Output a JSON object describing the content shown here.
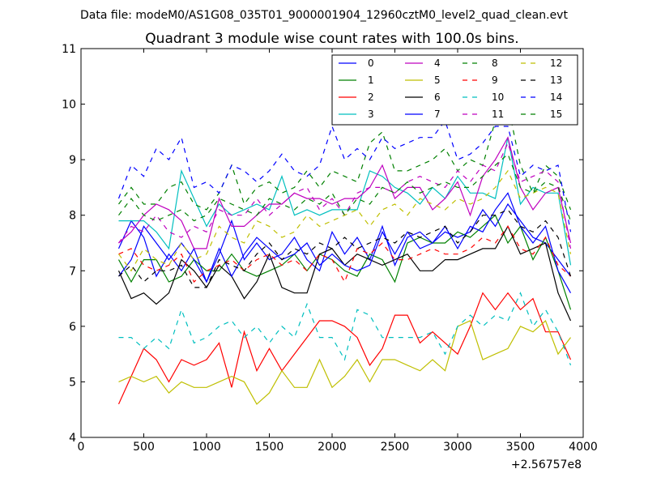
{
  "chart_data": {
    "type": "line",
    "suptitle": "Data file: modeM0/AS1G08_035T01_9000001904_12960cztM0_level2_quad_clean.evt",
    "title": "Quadrant 3 module wise count rates with 100.0s bins.",
    "xlabel": "",
    "ylabel": "",
    "x_offset_label": "+2.56757e8",
    "xlim": [
      0,
      4000
    ],
    "ylim": [
      4,
      11
    ],
    "xticks": [
      0,
      500,
      1000,
      1500,
      2000,
      2500,
      3000,
      3500,
      4000
    ],
    "yticks": [
      4,
      5,
      6,
      7,
      8,
      9,
      10,
      11
    ],
    "x": [
      300,
      400,
      500,
      600,
      700,
      800,
      900,
      1000,
      1100,
      1200,
      1300,
      1400,
      1500,
      1600,
      1700,
      1800,
      1900,
      2000,
      2100,
      2200,
      2300,
      2400,
      2500,
      2600,
      2700,
      2800,
      2900,
      3000,
      3100,
      3200,
      3300,
      3400,
      3500,
      3600,
      3700,
      3800,
      3900
    ],
    "legend_location": "top-right",
    "series": [
      {
        "name": "0",
        "color": "#0000ff",
        "dash": "solid",
        "values": [
          7.4,
          7.9,
          7.6,
          6.9,
          7.3,
          7.0,
          7.4,
          6.8,
          7.3,
          7.9,
          7.2,
          7.5,
          7.2,
          7.3,
          7.6,
          7.2,
          7.0,
          7.7,
          7.3,
          7.6,
          7.2,
          7.8,
          7.1,
          7.6,
          7.7,
          7.5,
          7.7,
          7.6,
          7.7,
          8.1,
          7.8,
          8.2,
          7.9,
          7.6,
          7.5,
          7.2,
          6.9
        ]
      },
      {
        "name": "1",
        "color": "#008000",
        "dash": "solid",
        "values": [
          7.2,
          6.8,
          7.2,
          7.2,
          6.8,
          6.9,
          7.2,
          7.0,
          7.0,
          7.3,
          7.0,
          6.9,
          7.0,
          7.1,
          7.3,
          7.0,
          7.3,
          7.2,
          7.0,
          6.9,
          7.3,
          7.2,
          6.8,
          7.5,
          7.6,
          7.5,
          7.5,
          7.7,
          7.6,
          7.8,
          8.0,
          7.5,
          7.8,
          7.2,
          7.6,
          7.0,
          6.3
        ]
      },
      {
        "name": "2",
        "color": "#ff0000",
        "dash": "solid",
        "values": [
          4.6,
          5.1,
          5.6,
          5.4,
          5.0,
          5.4,
          5.3,
          5.4,
          5.7,
          4.9,
          5.9,
          5.2,
          5.6,
          5.2,
          5.5,
          5.8,
          6.1,
          6.1,
          6.0,
          5.8,
          5.3,
          5.6,
          6.2,
          6.2,
          5.7,
          5.9,
          5.7,
          5.5,
          6.0,
          6.6,
          6.3,
          6.6,
          6.3,
          6.5,
          5.9,
          5.9,
          5.4
        ]
      },
      {
        "name": "3",
        "color": "#00bfbf",
        "dash": "solid",
        "values": [
          7.9,
          7.9,
          7.9,
          7.7,
          7.4,
          8.8,
          8.3,
          7.8,
          8.2,
          8.0,
          8.1,
          8.2,
          8.1,
          8.7,
          8.0,
          8.1,
          8.0,
          8.1,
          8.1,
          8.1,
          8.8,
          8.7,
          8.5,
          8.4,
          8.2,
          8.5,
          8.3,
          8.7,
          8.4,
          8.4,
          8.3,
          9.4,
          8.2,
          8.5,
          8.4,
          8.4,
          7.1
        ]
      },
      {
        "name": "4",
        "color": "#bf00bf",
        "dash": "solid",
        "values": [
          7.5,
          7.7,
          8.0,
          8.2,
          8.1,
          7.9,
          7.4,
          7.4,
          8.3,
          7.8,
          7.8,
          8.0,
          8.2,
          8.2,
          8.4,
          8.3,
          8.3,
          8.2,
          8.3,
          8.3,
          8.5,
          8.9,
          8.3,
          8.5,
          8.5,
          8.1,
          8.3,
          8.6,
          8.0,
          8.7,
          9.0,
          9.4,
          8.5,
          8.1,
          8.4,
          8.5,
          7.5
        ]
      },
      {
        "name": "5",
        "color": "#bfbf00",
        "dash": "solid",
        "values": [
          5.0,
          5.1,
          5.0,
          5.1,
          4.8,
          5.0,
          4.9,
          4.9,
          5.0,
          5.1,
          5.0,
          4.6,
          4.8,
          5.2,
          4.9,
          4.9,
          5.4,
          4.9,
          5.1,
          5.4,
          5.0,
          5.4,
          5.4,
          5.3,
          5.2,
          5.4,
          5.2,
          6.0,
          6.1,
          5.4,
          5.5,
          5.6,
          6.0,
          5.9,
          6.1,
          5.5,
          5.8
        ]
      },
      {
        "name": "6",
        "color": "#000000",
        "dash": "solid",
        "values": [
          7.0,
          6.5,
          6.6,
          6.4,
          6.6,
          7.2,
          7.0,
          6.7,
          7.1,
          6.9,
          6.5,
          6.8,
          7.3,
          6.7,
          6.6,
          6.6,
          7.3,
          7.4,
          7.1,
          7.3,
          7.2,
          7.1,
          7.2,
          7.3,
          7.0,
          7.0,
          7.2,
          7.2,
          7.3,
          7.4,
          7.4,
          7.8,
          7.3,
          7.4,
          7.5,
          6.6,
          6.1
        ]
      },
      {
        "name": "7",
        "color": "#0000ff",
        "dash": "solid",
        "values": [
          6.9,
          7.2,
          7.8,
          7.5,
          7.2,
          7.5,
          7.2,
          6.8,
          7.4,
          6.9,
          7.3,
          7.6,
          7.4,
          7.2,
          7.3,
          7.5,
          7.1,
          7.3,
          7.1,
          7.0,
          7.1,
          7.7,
          7.3,
          7.7,
          7.4,
          7.5,
          7.8,
          7.4,
          7.8,
          7.7,
          8.1,
          8.4,
          7.8,
          7.5,
          7.8,
          7.0,
          6.6
        ]
      },
      {
        "name": "8",
        "color": "#008000",
        "dash": "dashed",
        "values": [
          8.2,
          8.5,
          8.2,
          8.2,
          8.5,
          8.6,
          8.2,
          8.1,
          8.4,
          8.9,
          8.2,
          8.5,
          8.6,
          8.4,
          8.5,
          8.8,
          8.5,
          8.8,
          8.7,
          8.6,
          9.3,
          9.5,
          8.8,
          8.8,
          8.9,
          9.0,
          9.2,
          8.8,
          9.0,
          8.9,
          9.7,
          10.0,
          8.9,
          8.4,
          8.9,
          8.7,
          8.1
        ]
      },
      {
        "name": "9",
        "color": "#ff0000",
        "dash": "dashed",
        "values": [
          7.3,
          7.4,
          7.1,
          7.0,
          7.1,
          7.3,
          6.8,
          7.0,
          7.1,
          7.2,
          7.0,
          7.2,
          7.3,
          7.1,
          7.2,
          7.0,
          7.3,
          7.2,
          6.8,
          7.4,
          7.3,
          7.5,
          7.2,
          7.2,
          7.3,
          7.4,
          7.3,
          7.3,
          7.4,
          7.6,
          7.5,
          7.8,
          7.4,
          7.3,
          7.6,
          7.1,
          6.9
        ]
      },
      {
        "name": "10",
        "color": "#00bfbf",
        "dash": "dashed",
        "values": [
          5.8,
          5.8,
          5.6,
          5.8,
          5.6,
          6.3,
          5.7,
          5.8,
          6.0,
          6.1,
          5.8,
          6.0,
          5.7,
          6.0,
          5.8,
          6.4,
          5.8,
          5.8,
          5.4,
          6.3,
          6.2,
          5.8,
          5.8,
          5.8,
          5.8,
          5.9,
          5.5,
          6.0,
          6.2,
          6.0,
          6.2,
          6.1,
          6.6,
          6.0,
          6.3,
          5.9,
          5.3
        ]
      },
      {
        "name": "11",
        "color": "#bf00bf",
        "dash": "dashed",
        "values": [
          7.5,
          7.8,
          7.7,
          8.0,
          7.7,
          7.6,
          7.8,
          7.7,
          8.1,
          8.0,
          8.0,
          8.3,
          8.0,
          8.2,
          8.4,
          8.5,
          8.1,
          8.3,
          8.0,
          8.4,
          8.5,
          8.5,
          8.4,
          8.6,
          8.7,
          8.6,
          8.5,
          8.8,
          8.6,
          8.9,
          8.8,
          9.3,
          8.6,
          8.7,
          8.8,
          8.6,
          7.4
        ]
      },
      {
        "name": "12",
        "color": "#bfbf00",
        "dash": "dashed",
        "values": [
          7.3,
          7.0,
          7.4,
          7.2,
          7.1,
          7.5,
          7.2,
          7.3,
          7.8,
          7.6,
          7.5,
          7.9,
          7.8,
          7.6,
          7.7,
          8.0,
          7.8,
          7.9,
          8.0,
          8.1,
          7.8,
          8.1,
          8.2,
          8.0,
          8.3,
          8.2,
          8.1,
          8.3,
          8.2,
          8.3,
          8.5,
          8.8,
          8.3,
          8.4,
          8.5,
          8.4,
          7.3
        ]
      },
      {
        "name": "13",
        "color": "#000000",
        "dash": "dashed",
        "values": [
          6.9,
          7.1,
          6.8,
          7.0,
          7.0,
          7.1,
          6.7,
          6.7,
          7.2,
          7.1,
          7.0,
          7.3,
          7.5,
          7.2,
          7.4,
          7.3,
          7.5,
          7.4,
          7.6,
          7.4,
          7.5,
          7.6,
          7.5,
          7.7,
          7.6,
          7.7,
          7.8,
          7.5,
          7.7,
          8.0,
          8.0,
          8.1,
          7.8,
          7.7,
          7.9,
          7.6,
          6.9
        ]
      },
      {
        "name": "14",
        "color": "#0000ff",
        "dash": "dashed",
        "values": [
          8.3,
          8.9,
          8.7,
          9.2,
          9.0,
          9.4,
          8.5,
          8.6,
          8.4,
          8.9,
          8.8,
          8.6,
          8.8,
          9.1,
          8.8,
          8.7,
          8.9,
          9.6,
          9.0,
          9.2,
          9.0,
          9.4,
          9.2,
          9.3,
          9.4,
          9.4,
          9.7,
          9.0,
          9.1,
          9.3,
          9.6,
          9.6,
          8.7,
          8.9,
          8.8,
          8.9,
          7.7
        ]
      },
      {
        "name": "15",
        "color": "#008000",
        "dash": "dashed",
        "values": [
          8.0,
          8.3,
          8.0,
          7.9,
          8.0,
          8.1,
          7.9,
          8.0,
          8.3,
          8.2,
          8.1,
          8.0,
          8.3,
          8.2,
          8.1,
          8.3,
          8.2,
          8.4,
          8.0,
          8.3,
          8.2,
          8.5,
          8.4,
          8.6,
          8.4,
          8.5,
          8.6,
          8.5,
          8.5,
          8.7,
          8.9,
          9.1,
          8.5,
          8.4,
          8.6,
          8.5,
          7.9
        ]
      }
    ]
  }
}
